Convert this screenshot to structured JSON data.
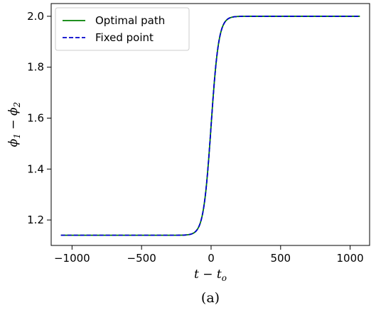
{
  "chart_data": {
    "type": "line",
    "xlabel": "t − t",
    "xlabel_sub": "o",
    "ylabel_parts": [
      "ϕ",
      "1",
      " − ϕ",
      "2"
    ],
    "xlim": [
      -1150,
      1140
    ],
    "ylim": [
      1.1,
      2.05
    ],
    "xticks": [
      -1000,
      -500,
      0,
      500,
      1000
    ],
    "xtick_labels": [
      "−1000",
      "−500",
      "0",
      "500",
      "1000"
    ],
    "yticks": [
      1.2,
      1.4,
      1.6,
      1.8,
      2.0
    ],
    "ytick_labels": [
      "1.2",
      "1.4",
      "1.6",
      "1.8",
      "2.0"
    ],
    "grid": false,
    "legend_position": "top-left",
    "x_range": [
      -1080,
      1070
    ],
    "series": [
      {
        "name": "Optimal path",
        "color": "#008000",
        "style": "solid",
        "low": 1.14,
        "high": 2.0,
        "center": 0,
        "width": 55
      },
      {
        "name": "Fixed point",
        "color": "#0000cc",
        "style": "dashed",
        "low": 1.14,
        "high": 2.0,
        "center": 0,
        "width": 55
      }
    ],
    "caption": "(a)"
  }
}
